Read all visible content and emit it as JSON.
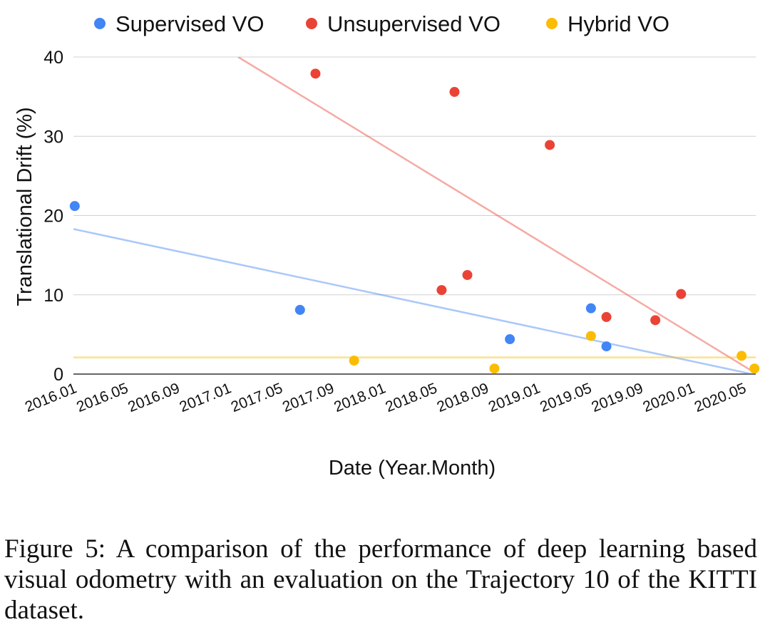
{
  "chart_data": {
    "type": "scatter",
    "title": "",
    "xlabel": "Date (Year.Month)",
    "ylabel": "Translational Drift (%)",
    "ylim": [
      0,
      40
    ],
    "yticks": [
      0,
      10,
      20,
      30,
      40
    ],
    "xlim": [
      0,
      53
    ],
    "xtick_values": [
      0,
      4,
      8,
      12,
      16,
      20,
      24,
      28,
      32,
      36,
      40,
      44,
      48,
      52
    ],
    "xtick_labels": [
      "2016.01",
      "2016.05",
      "2016.09",
      "2017.01",
      "2017.05",
      "2017.09",
      "2018.01",
      "2018.05",
      "2018.09",
      "2019.01",
      "2019.05",
      "2019.09",
      "2020.01",
      "2020.05"
    ],
    "grid": true,
    "legend_position": "top",
    "series": [
      {
        "name": "Supervised VO",
        "color": "#4285f4",
        "points": [
          [
            0.1,
            21.2
          ],
          [
            17.6,
            8.1
          ],
          [
            33.9,
            4.4
          ],
          [
            40.2,
            8.3
          ],
          [
            41.4,
            3.5
          ]
        ],
        "trend": [
          [
            0,
            18.3
          ],
          [
            53,
            -0.1
          ]
        ]
      },
      {
        "name": "Unsupervised VO",
        "color": "#ea4335",
        "points": [
          [
            18.8,
            37.9
          ],
          [
            29.6,
            35.6
          ],
          [
            37.0,
            28.9
          ],
          [
            28.6,
            10.6
          ],
          [
            30.6,
            12.5
          ],
          [
            41.4,
            7.2
          ],
          [
            45.2,
            6.8
          ],
          [
            47.2,
            10.1
          ]
        ],
        "trend": [
          [
            12.8,
            40.0
          ],
          [
            53,
            0.1
          ]
        ]
      },
      {
        "name": "Hybrid VO",
        "color": "#fbbc04",
        "points": [
          [
            21.8,
            1.7
          ],
          [
            32.7,
            0.7
          ],
          [
            40.2,
            4.8
          ],
          [
            51.9,
            2.3
          ],
          [
            52.9,
            0.7
          ]
        ],
        "trend": [
          [
            0,
            2.1
          ],
          [
            53,
            2.1
          ]
        ]
      }
    ]
  },
  "caption": "Figure 5: A comparison of the performance of deep learning based visual odometry with an evaluation on the Trajectory 10 of the KITTI dataset."
}
